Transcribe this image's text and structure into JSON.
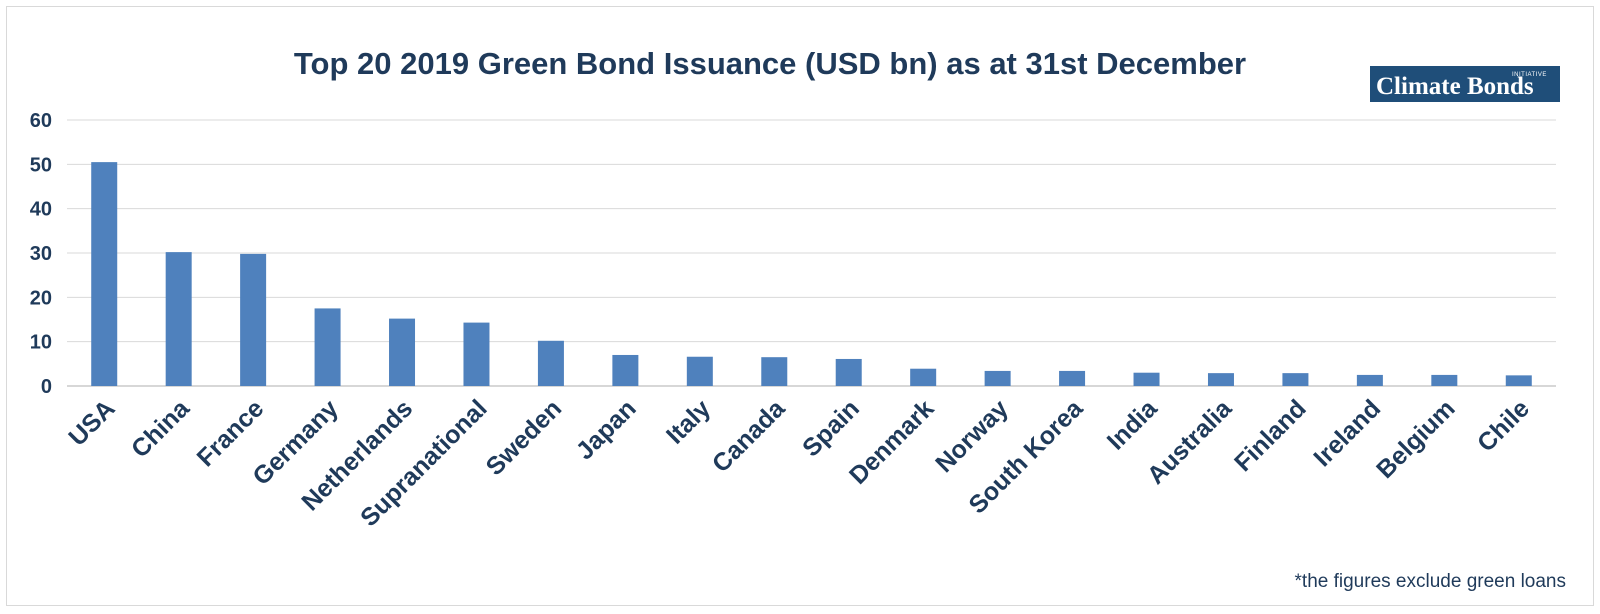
{
  "chart_data": {
    "type": "bar",
    "title": "Top 20 2019 Green Bond Issuance (USD bn) as at 31st December",
    "categories": [
      "USA",
      "China",
      "France",
      "Germany",
      "Netherlands",
      "Supranational",
      "Sweden",
      "Japan",
      "Italy",
      "Canada",
      "Spain",
      "Denmark",
      "Norway",
      "South Korea",
      "India",
      "Australia",
      "Finland",
      "Ireland",
      "Belgium",
      "Chile"
    ],
    "values": [
      50.5,
      30.2,
      29.8,
      17.5,
      15.2,
      14.3,
      10.2,
      7.0,
      6.6,
      6.5,
      6.1,
      3.9,
      3.4,
      3.4,
      3.0,
      2.9,
      2.9,
      2.5,
      2.5,
      2.4
    ],
    "ylim": [
      0,
      60
    ],
    "yticks": [
      0,
      10,
      20,
      30,
      40,
      50,
      60
    ],
    "grid": true,
    "legend": "none",
    "bar_color": "#4f81bd",
    "text_color": "#1f3a5a",
    "grid_color": "#d9d9d9"
  },
  "logo": {
    "text": "Climate Bonds",
    "subtext": "INITIATIVE",
    "background": "#1f4e79"
  },
  "footnote": "*the figures exclude green loans"
}
